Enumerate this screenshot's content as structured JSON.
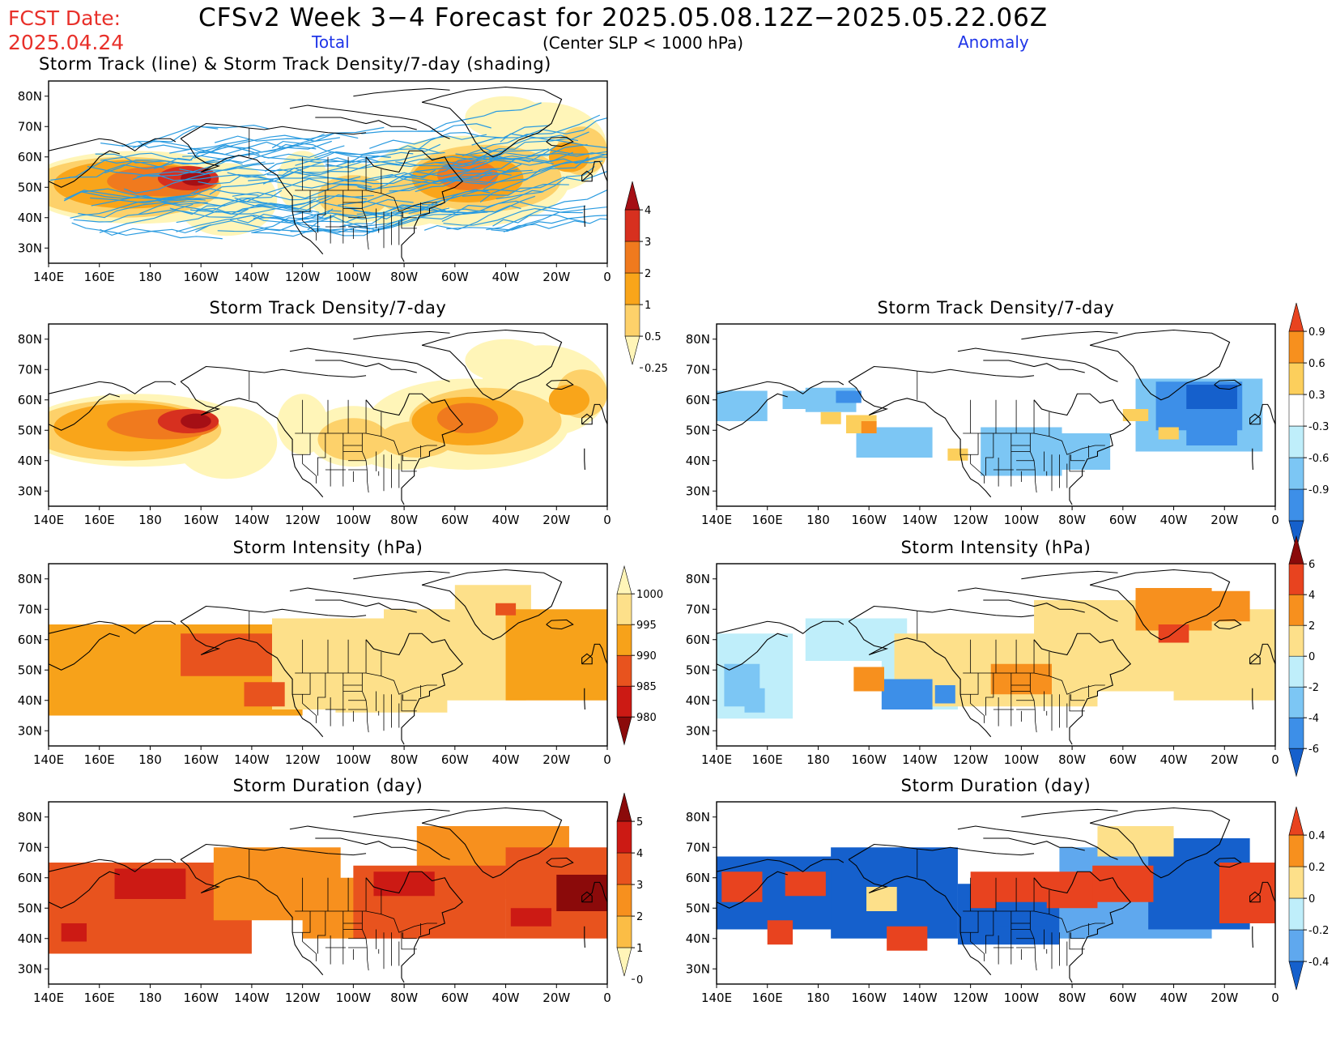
{
  "header": {
    "fcst_label": "FCST Date:",
    "fcst_date": "2025.04.24",
    "title": "CFSv2 Week 3−4 Forecast for 2025.05.08.12Z−2025.05.22.06Z",
    "total_label": "Total",
    "center_label": "(Center SLP < 1000 hPa)",
    "anomaly_label": "Anomaly"
  },
  "axes": {
    "lon_labels": [
      "140E",
      "160E",
      "180",
      "160W",
      "140W",
      "120W",
      "100W",
      "80W",
      "60W",
      "40W",
      "20W",
      "0"
    ],
    "lat_labels": [
      "80N",
      "70N",
      "60N",
      "50N",
      "40N",
      "30N"
    ]
  },
  "panels": {
    "track_total": {
      "title": "Storm Track (line) & Storm Track Density/7-day (shading)"
    },
    "density_total": {
      "title": "Storm Track Density/7-day"
    },
    "density_anom": {
      "title": "Storm Track Density/7-day"
    },
    "intensity_total": {
      "title": "Storm Intensity (hPa)"
    },
    "intensity_anom": {
      "title": "Storm Intensity (hPa)"
    },
    "duration_total": {
      "title": "Storm Duration (day)"
    },
    "duration_anom": {
      "title": "Storm Duration (day)"
    }
  },
  "colorbars": {
    "density_total": {
      "labels": [
        "4",
        "3",
        "2",
        "1",
        "0.5",
        "0.25"
      ],
      "colors": [
        "#a50f15",
        "#d7301f",
        "#f07a1e",
        "#f9a51a",
        "#fdd16a",
        "#fff5b8"
      ]
    },
    "density_anom": {
      "labels": [
        "0.9",
        "0.6",
        "0.3",
        "-0.3",
        "-0.6",
        "-0.9"
      ],
      "colors": [
        "#e8431f",
        "#f7901e",
        "#fccf5c",
        "#ffffff",
        "#bfeefa",
        "#7cc6f4",
        "#3d8fe8",
        "#1560cc"
      ]
    },
    "intensity_total": {
      "labels": [
        "1000",
        "995",
        "990",
        "985",
        "980"
      ],
      "colors": [
        "#fff5b8",
        "#fde08a",
        "#f7a21a",
        "#e8531e",
        "#cc1a14",
        "#8b0a0a"
      ]
    },
    "intensity_anom": {
      "labels": [
        "6",
        "4",
        "2",
        "0",
        "-2",
        "-4",
        "-6"
      ],
      "colors": [
        "#8b0a0a",
        "#e8431f",
        "#f7901e",
        "#fde08a",
        "#bfeefa",
        "#7cc6f4",
        "#3d8fe8",
        "#1560cc"
      ]
    },
    "duration_total": {
      "labels": [
        "5",
        "4",
        "3",
        "2",
        "1",
        "0"
      ],
      "colors": [
        "#8b0a0a",
        "#cc1a14",
        "#e8531e",
        "#f7901e",
        "#fbbd45",
        "#fff5b8"
      ]
    },
    "duration_anom": {
      "labels": [
        "0.4",
        "0.2",
        "0",
        "-0.2",
        "-0.4"
      ],
      "colors": [
        "#e8431f",
        "#f7901e",
        "#fde08a",
        "#bfeefa",
        "#5fa8ee",
        "#1560cc"
      ]
    }
  }
}
